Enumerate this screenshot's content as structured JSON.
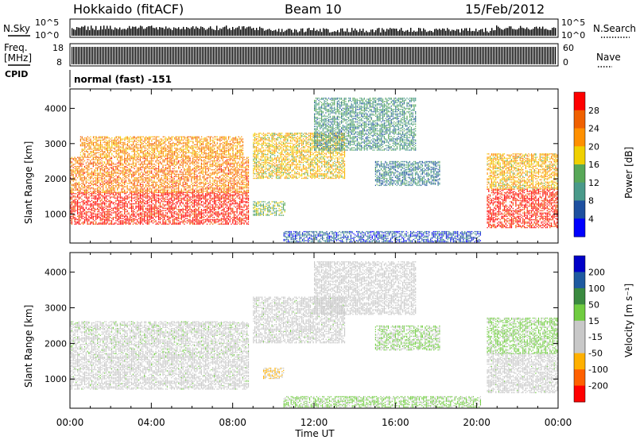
{
  "header": {
    "station": "Hokkaido (fitACF)",
    "beam": "Beam 10",
    "date": "15/Feb/2012",
    "mode": "normal (fast) -151"
  },
  "noise_panel": {
    "left_label": "N.Sky",
    "right_label": "N.Search",
    "ticks": [
      "10^5",
      "10^0"
    ]
  },
  "freq_panel": {
    "left_label_1": "Freq.",
    "left_label_2": "[MHz]",
    "cpid_label": "CPID",
    "left_ticks": [
      "18",
      "8"
    ],
    "right_ticks": [
      "60",
      "0"
    ],
    "right_label": "Nave"
  },
  "chart_data": [
    {
      "type": "heatmap",
      "name": "power-panel",
      "xlabel": "",
      "ylabel": "Slant Range [km]",
      "x_ticks": [
        "00:00",
        "04:00",
        "08:00",
        "12:00",
        "16:00",
        "20:00",
        "00:00"
      ],
      "xlim_hours": [
        0,
        24
      ],
      "y_ticks": [
        1000,
        2000,
        3000,
        4000
      ],
      "ylim_km": [
        180,
        4550
      ],
      "colorbar": {
        "label": "Power [dB]",
        "ticks": [
          "28",
          "24",
          "20",
          "16",
          "12",
          "8",
          "4"
        ],
        "range": [
          0,
          32
        ],
        "colors": [
          "#0000ff",
          "#1e50a0",
          "#4a9a8a",
          "#58a858",
          "#f0d000",
          "#ff9000",
          "#f06000",
          "#ff0000"
        ]
      },
      "regions": [
        {
          "t": [
            0.0,
            8.8
          ],
          "r": [
            700,
            1600
          ],
          "val": 30
        },
        {
          "t": [
            0.0,
            8.8
          ],
          "r": [
            1600,
            2600
          ],
          "val": 24
        },
        {
          "t": [
            0.5,
            8.5
          ],
          "r": [
            2600,
            3200
          ],
          "val": 22
        },
        {
          "t": [
            9.0,
            10.6
          ],
          "r": [
            950,
            1350
          ],
          "val": 14
        },
        {
          "t": [
            9.0,
            13.5
          ],
          "r": [
            2000,
            3300
          ],
          "val": 19
        },
        {
          "t": [
            12.0,
            17.0
          ],
          "r": [
            2800,
            4300
          ],
          "val": 11
        },
        {
          "t": [
            15.0,
            18.2
          ],
          "r": [
            1800,
            2500
          ],
          "val": 9
        },
        {
          "t": [
            10.5,
            20.2
          ],
          "r": [
            200,
            500
          ],
          "val": 6
        },
        {
          "t": [
            20.5,
            24.0
          ],
          "r": [
            600,
            1700
          ],
          "val": 30
        },
        {
          "t": [
            20.5,
            24.0
          ],
          "r": [
            1700,
            2700
          ],
          "val": 20
        }
      ]
    },
    {
      "type": "heatmap",
      "name": "velocity-panel",
      "xlabel": "Time UT",
      "ylabel": "Slant Range [km]",
      "x_ticks": [
        "00:00",
        "04:00",
        "08:00",
        "12:00",
        "16:00",
        "20:00",
        "00:00"
      ],
      "xlim_hours": [
        0,
        24
      ],
      "y_ticks": [
        1000,
        2000,
        3000,
        4000
      ],
      "ylim_km": [
        180,
        4550
      ],
      "colorbar": {
        "label": "Velocity [m s⁻¹]",
        "ticks": [
          "200",
          "100",
          "50",
          "15",
          "-15",
          "-50",
          "-100",
          "-200"
        ],
        "range": [
          -250,
          250
        ],
        "colors": [
          "#ff0000",
          "#ff6000",
          "#ffb000",
          "#c8c8c8",
          "#c8c8c8",
          "#70cc40",
          "#3a8a40",
          "#1e5aa0",
          "#0000c8"
        ]
      },
      "regions": [
        {
          "t": [
            0.0,
            8.8
          ],
          "r": [
            700,
            1600
          ],
          "val": 0
        },
        {
          "t": [
            0.0,
            8.8
          ],
          "r": [
            1600,
            2600
          ],
          "val": 5
        },
        {
          "t": [
            9.5,
            10.5
          ],
          "r": [
            1000,
            1300
          ],
          "val": -90
        },
        {
          "t": [
            9.0,
            13.5
          ],
          "r": [
            2000,
            3300
          ],
          "val": 0
        },
        {
          "t": [
            12.0,
            17.0
          ],
          "r": [
            2800,
            4300
          ],
          "val": -40
        },
        {
          "t": [
            15.0,
            18.2
          ],
          "r": [
            1800,
            2500
          ],
          "val": 30
        },
        {
          "t": [
            10.5,
            20.2
          ],
          "r": [
            200,
            500
          ],
          "val": 40
        },
        {
          "t": [
            20.5,
            24.0
          ],
          "r": [
            600,
            1700
          ],
          "val": 0
        },
        {
          "t": [
            20.5,
            24.0
          ],
          "r": [
            1700,
            2700
          ],
          "val": 40
        }
      ]
    }
  ]
}
